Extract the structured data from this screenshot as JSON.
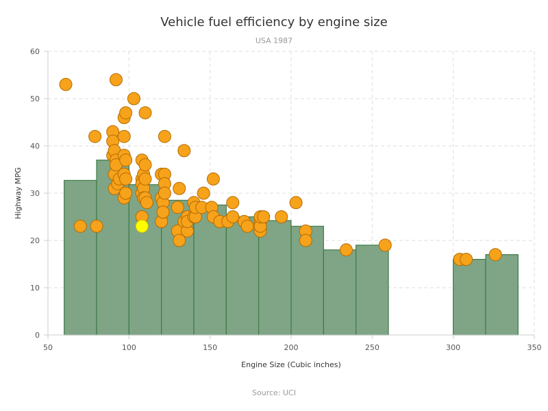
{
  "chart_data": {
    "type": "scatter",
    "title": "Vehicle fuel efficiency by engine size",
    "subtitle": "USA 1987",
    "source": "Source: UCI",
    "xlabel": "Engine Size (Cubic inches)",
    "ylabel": "Highway MPG",
    "xlim": [
      50,
      350
    ],
    "ylim": [
      0,
      60
    ],
    "x_ticks": [
      50,
      100,
      150,
      200,
      250,
      300,
      350
    ],
    "y_ticks": [
      0,
      10,
      20,
      30,
      40,
      50,
      60
    ],
    "grid": true,
    "colors": {
      "bar_fill": "#7fa586",
      "bar_stroke": "#3d7a47",
      "point_fill": "#f7a21b",
      "point_stroke": "#b36b00",
      "highlight_fill": "#ffff00",
      "highlight_stroke": "#d4c400",
      "grid": "#dddddd"
    },
    "histogram": [
      {
        "x0": 60,
        "x1": 80,
        "value": 32.7
      },
      {
        "x0": 80,
        "x1": 100,
        "value": 37
      },
      {
        "x0": 100,
        "x1": 120,
        "value": 31.8
      },
      {
        "x0": 120,
        "x1": 140,
        "value": 28.5
      },
      {
        "x0": 140,
        "x1": 160,
        "value": 27.5
      },
      {
        "x0": 160,
        "x1": 180,
        "value": 25
      },
      {
        "x0": 180,
        "x1": 200,
        "value": 24.2
      },
      {
        "x0": 200,
        "x1": 220,
        "value": 23
      },
      {
        "x0": 220,
        "x1": 240,
        "value": 18
      },
      {
        "x0": 240,
        "x1": 260,
        "value": 19
      },
      {
        "x0": 300,
        "x1": 320,
        "value": 16
      },
      {
        "x0": 320,
        "x1": 340,
        "value": 17
      }
    ],
    "points": [
      [
        61,
        53
      ],
      [
        70,
        23
      ],
      [
        79,
        42
      ],
      [
        80,
        23
      ],
      [
        90,
        43
      ],
      [
        90,
        41
      ],
      [
        90,
        38
      ],
      [
        91,
        39
      ],
      [
        91,
        31
      ],
      [
        91,
        34
      ],
      [
        92,
        54
      ],
      [
        92,
        37
      ],
      [
        92,
        36
      ],
      [
        93,
        32
      ],
      [
        94,
        33
      ],
      [
        97,
        46
      ],
      [
        97,
        42
      ],
      [
        97,
        38
      ],
      [
        97,
        34
      ],
      [
        97,
        29
      ],
      [
        98,
        47
      ],
      [
        98,
        37
      ],
      [
        98,
        33
      ],
      [
        98,
        30
      ],
      [
        103,
        50
      ],
      [
        108,
        37
      ],
      [
        108,
        33
      ],
      [
        108,
        32
      ],
      [
        108,
        30
      ],
      [
        108,
        25
      ],
      [
        108,
        32
      ],
      [
        109,
        34
      ],
      [
        109,
        31
      ],
      [
        109,
        29
      ],
      [
        110,
        36
      ],
      [
        110,
        33
      ],
      [
        110,
        29
      ],
      [
        110,
        47
      ],
      [
        111,
        28
      ],
      [
        120,
        34
      ],
      [
        120,
        29
      ],
      [
        120,
        24
      ],
      [
        121,
        28
      ],
      [
        121,
        26
      ],
      [
        122,
        42
      ],
      [
        122,
        34
      ],
      [
        122,
        32
      ],
      [
        122,
        30
      ],
      [
        130,
        27
      ],
      [
        130,
        22
      ],
      [
        131,
        20
      ],
      [
        131,
        31
      ],
      [
        134,
        39
      ],
      [
        134,
        24
      ],
      [
        136,
        25
      ],
      [
        136,
        22
      ],
      [
        136,
        24
      ],
      [
        140,
        25
      ],
      [
        140,
        28
      ],
      [
        141,
        25
      ],
      [
        141,
        27
      ],
      [
        145,
        27
      ],
      [
        146,
        30
      ],
      [
        151,
        27
      ],
      [
        152,
        33
      ],
      [
        152,
        25
      ],
      [
        156,
        24
      ],
      [
        161,
        24
      ],
      [
        164,
        28
      ],
      [
        164,
        25
      ],
      [
        171,
        24
      ],
      [
        173,
        23
      ],
      [
        181,
        22
      ],
      [
        181,
        24
      ],
      [
        181,
        23
      ],
      [
        181,
        25
      ],
      [
        183,
        25
      ],
      [
        194,
        25
      ],
      [
        203,
        28
      ],
      [
        209,
        22
      ],
      [
        209,
        20
      ],
      [
        234,
        18
      ],
      [
        258,
        19
      ],
      [
        304,
        16
      ],
      [
        308,
        16
      ],
      [
        326,
        17
      ]
    ],
    "highlight_point": [
      108,
      23
    ]
  }
}
